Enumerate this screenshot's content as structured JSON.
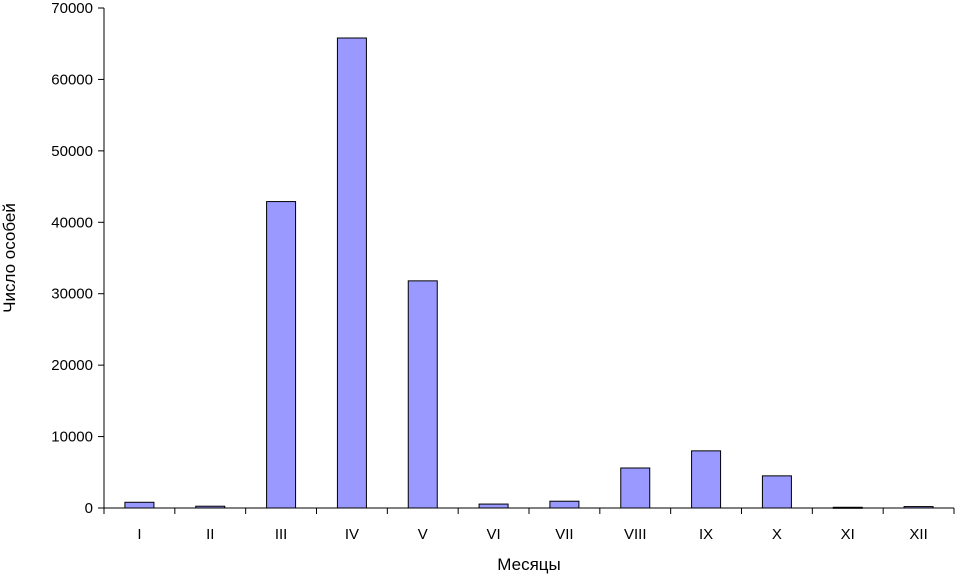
{
  "chart_data": {
    "type": "bar",
    "title": "",
    "xlabel": "Месяцы",
    "ylabel": "Число особей",
    "categories": [
      "I",
      "II",
      "III",
      "IV",
      "V",
      "VI",
      "VII",
      "VIII",
      "IX",
      "X",
      "XI",
      "XII"
    ],
    "values": [
      800,
      250,
      42900,
      65800,
      31800,
      550,
      950,
      5600,
      8000,
      4500,
      100,
      200
    ],
    "ylim": [
      0,
      70000
    ],
    "yticks": [
      "0",
      "10000",
      "20000",
      "30000",
      "40000",
      "50000",
      "60000",
      "70000"
    ],
    "grid": false,
    "legend": "none",
    "bar_color": "#9999ff",
    "bar_edge_color": "#000000"
  }
}
